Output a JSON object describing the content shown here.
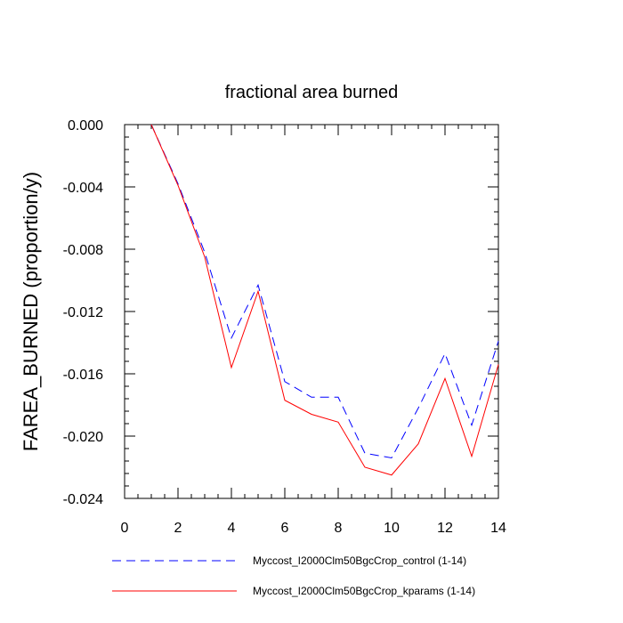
{
  "chart_data": {
    "type": "line",
    "title": "fractional area burned",
    "xlabel": "",
    "ylabel": "FAREA_BURNED  (proportion/y)",
    "xlim": [
      0,
      14
    ],
    "ylim": [
      -0.024,
      0.0
    ],
    "xticks": [
      0,
      2,
      4,
      6,
      8,
      10,
      12,
      14
    ],
    "yticks": [
      0.0,
      -0.004,
      -0.008,
      -0.012,
      -0.016,
      -0.02,
      -0.024
    ],
    "xtick_labels": [
      "0",
      "2",
      "4",
      "6",
      "8",
      "10",
      "12",
      "14"
    ],
    "ytick_labels": [
      "0.000",
      "-0.004",
      "-0.008",
      "-0.012",
      "-0.016",
      "-0.020",
      "-0.024"
    ],
    "x": [
      1,
      2,
      3,
      4,
      5,
      6,
      7,
      8,
      9,
      10,
      11,
      12,
      13,
      14
    ],
    "series": [
      {
        "name": "Myccost_I2000Clm50BgcCrop_control (1-14)",
        "color": "#0000ff",
        "dash": "dashed",
        "values": [
          0.0,
          -0.0038,
          -0.0082,
          -0.0137,
          -0.0103,
          -0.0165,
          -0.0175,
          -0.0175,
          -0.0211,
          -0.0214,
          -0.0182,
          -0.0147,
          -0.0193,
          -0.0139
        ]
      },
      {
        "name": "Myccost_I2000Clm50BgcCrop_kparams (1-14)",
        "color": "#ff0000",
        "dash": "solid",
        "values": [
          0.0,
          -0.0039,
          -0.0085,
          -0.0156,
          -0.0107,
          -0.0177,
          -0.0186,
          -0.0191,
          -0.022,
          -0.0225,
          -0.0205,
          -0.0163,
          -0.0213,
          -0.0154
        ]
      }
    ],
    "grid": false,
    "legend_position": "bottom"
  }
}
